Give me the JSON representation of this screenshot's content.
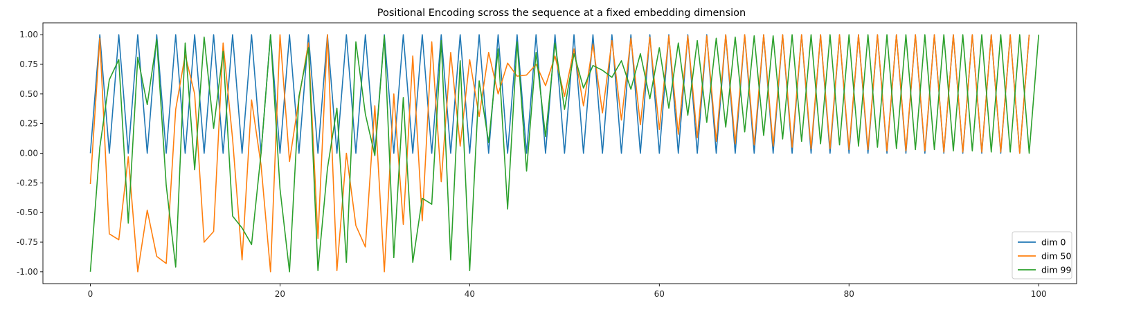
{
  "chart_data": {
    "type": "line",
    "title": "Positional Encoding scross the sequence at a fixed embedding dimension",
    "xlabel": "",
    "ylabel": "",
    "xlim": [
      -5,
      104
    ],
    "ylim": [
      -1.1,
      1.1
    ],
    "xticks": [
      0,
      20,
      40,
      60,
      80,
      100
    ],
    "yticks": [
      -1.0,
      -0.75,
      -0.5,
      -0.25,
      0.0,
      0.25,
      0.5,
      0.75,
      1.0
    ],
    "grid": false,
    "legend_position": "bottom-right",
    "series": [
      {
        "name": "dim 0",
        "color": "#1f77b4",
        "x_start": 0,
        "values": [
          0,
          1,
          0,
          1,
          0,
          1,
          0,
          1,
          0,
          1,
          0,
          1,
          0,
          1,
          0,
          1,
          0,
          1,
          0,
          1,
          0,
          1,
          0,
          1,
          0,
          1,
          0,
          1,
          0,
          1,
          0,
          1,
          0,
          1,
          0,
          1,
          0,
          1,
          0,
          1,
          0,
          1,
          0,
          1,
          0,
          1,
          0,
          1,
          0,
          1,
          0,
          1,
          0,
          1,
          0,
          1,
          0,
          1,
          0,
          1,
          0,
          1,
          0,
          1,
          0,
          1,
          0,
          1,
          0,
          1,
          0,
          1,
          0,
          1,
          0,
          1,
          0,
          1,
          0,
          1,
          0,
          1,
          0,
          1,
          0,
          1,
          0,
          1,
          0,
          1,
          0,
          1,
          0,
          1,
          0,
          1,
          0,
          1,
          0,
          1
        ]
      },
      {
        "name": "dim 50",
        "color": "#ff7f0e",
        "x_start": 0,
        "values": [
          -0.26,
          0.97,
          -0.68,
          -0.73,
          -0.03,
          -1.0,
          -0.48,
          -0.87,
          -0.93,
          0.37,
          0.83,
          0.5,
          -0.75,
          -0.66,
          0.93,
          0.12,
          -0.9,
          0.45,
          -0.1,
          -1.0,
          1.0,
          -0.07,
          0.46,
          0.93,
          -0.72,
          1.0,
          -0.99,
          0.0,
          -0.61,
          -0.79,
          0.4,
          -1.0,
          0.5,
          -0.6,
          0.82,
          -0.57,
          0.94,
          -0.24,
          0.85,
          0.06,
          0.79,
          0.31,
          0.85,
          0.5,
          0.76,
          0.65,
          0.66,
          0.75,
          0.57,
          0.82,
          0.48,
          0.88,
          0.4,
          0.92,
          0.34,
          0.95,
          0.28,
          0.97,
          0.24,
          0.98,
          0.2,
          0.99,
          0.16,
          0.99,
          0.13,
          0.99,
          0.1,
          1.0,
          0.08,
          1.0,
          0.07,
          1.0,
          0.06,
          1.0,
          0.05,
          1.0,
          0.04,
          1.0,
          0.04,
          1.0,
          0.03,
          1.0,
          0.03,
          1.0,
          0.02,
          1.0,
          0.02,
          1.0,
          0.02,
          1.0,
          0.01,
          1.0,
          0.01,
          1.0,
          0.01,
          1.0,
          0.01,
          1.0,
          0.0,
          1.0
        ]
      },
      {
        "name": "dim 99",
        "color": "#2ca02c",
        "x_start": 0,
        "values": [
          -1.0,
          0.05,
          0.62,
          0.79,
          -0.59,
          0.81,
          0.41,
          0.96,
          -0.27,
          -0.96,
          0.93,
          -0.14,
          0.98,
          0.21,
          0.86,
          -0.53,
          -0.63,
          -0.77,
          0.0,
          1.0,
          -0.3,
          -1.0,
          0.48,
          0.89,
          -0.99,
          -0.13,
          0.38,
          -0.92,
          0.94,
          0.33,
          -0.02,
          0.99,
          -0.88,
          0.47,
          -0.92,
          -0.38,
          -0.43,
          0.95,
          -0.9,
          0.78,
          -0.99,
          0.61,
          0.09,
          0.88,
          -0.47,
          0.94,
          -0.15,
          0.85,
          0.14,
          0.93,
          0.37,
          0.84,
          0.55,
          0.74,
          0.7,
          0.64,
          0.78,
          0.54,
          0.84,
          0.46,
          0.89,
          0.38,
          0.93,
          0.32,
          0.95,
          0.26,
          0.97,
          0.22,
          0.98,
          0.18,
          0.99,
          0.15,
          0.99,
          0.12,
          1.0,
          0.1,
          1.0,
          0.08,
          1.0,
          0.07,
          1.0,
          0.06,
          1.0,
          0.05,
          1.0,
          0.04,
          1.0,
          0.03,
          1.0,
          0.03,
          1.0,
          0.02,
          1.0,
          0.02,
          1.0,
          0.01,
          1.0,
          0.01,
          1.0,
          0.0,
          1.0
        ]
      }
    ]
  }
}
